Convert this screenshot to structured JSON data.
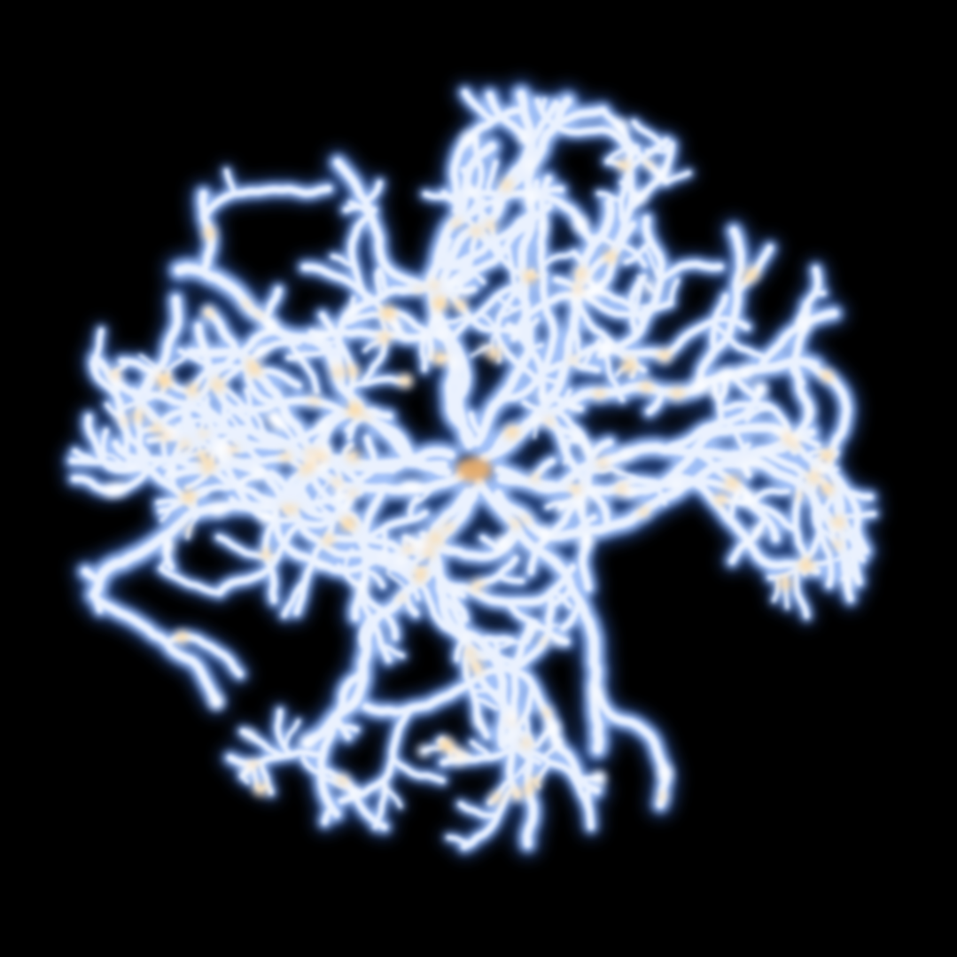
{
  "scene": {
    "subject": "dendritic-fractal-cluster",
    "colors": {
      "background": "#000000",
      "halo": "#3a6fd8",
      "glow": "#a8c8ff",
      "core": "#eef4ff",
      "hotspot": "#ffd89a",
      "hot_center": "#f2b36a"
    }
  }
}
